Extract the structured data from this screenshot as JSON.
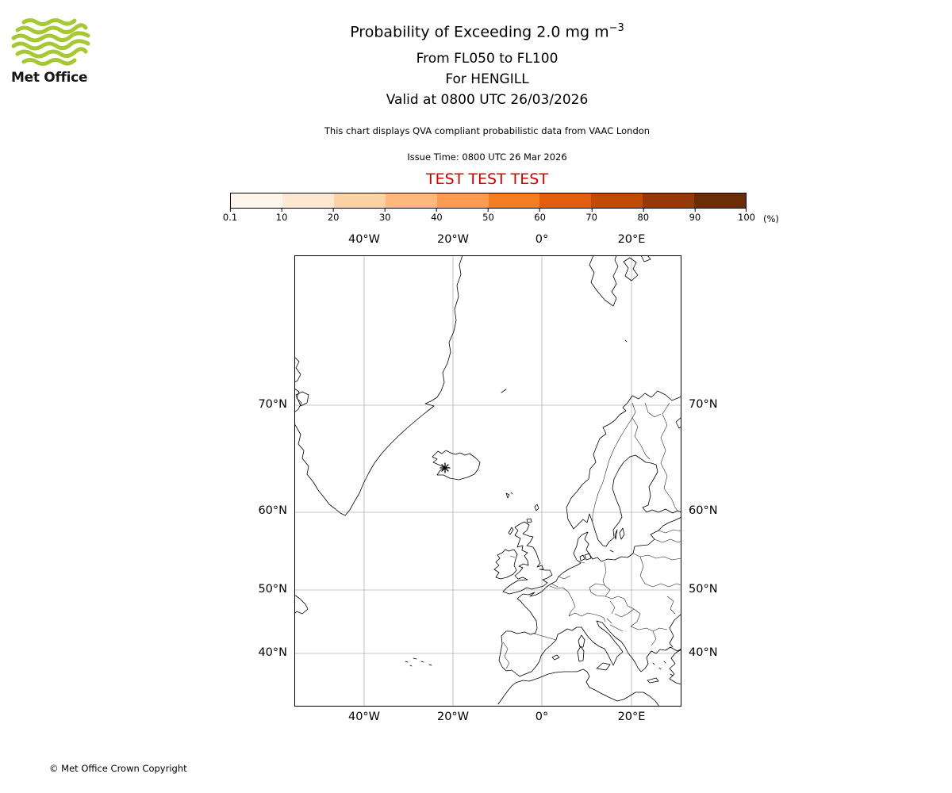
{
  "header": {
    "logo": {
      "brand": "Met Office",
      "wave_color": "#a6c832"
    },
    "title_main": "Probability of Exceeding 2.0 mg m",
    "title_superscript": "−3",
    "subtitle_flight_levels": "From FL050 to FL100",
    "subtitle_volcano": "For HENGILL",
    "subtitle_valid": "Valid at 0800 UTC 26/03/2026",
    "description": "This chart displays QVA compliant probabilistic data from VAAC London",
    "issue_time": "Issue Time: 0800 UTC 26 Mar 2026",
    "test_banner": "TEST TEST TEST",
    "test_banner_color": "#d40000"
  },
  "colorbar": {
    "tick_labels": [
      "0.1",
      "10",
      "20",
      "30",
      "40",
      "50",
      "60",
      "70",
      "80",
      "90",
      "100"
    ],
    "unit": "(%)",
    "segment_colors": [
      "#fff5eb",
      "#fee8d2",
      "#fdd2a6",
      "#fdb97d",
      "#fd9c51",
      "#f57d21",
      "#e25d0e",
      "#c14a05",
      "#96390a",
      "#6b2d05"
    ]
  },
  "map": {
    "top_ticks": [
      "40°W",
      "20°W",
      "0°",
      "20°E"
    ],
    "bottom_ticks": [
      "40°W",
      "20°W",
      "0°",
      "20°E"
    ],
    "left_ticks": [
      "70°N",
      "60°N",
      "50°N",
      "40°N"
    ],
    "right_ticks": [
      "70°N",
      "60°N",
      "50°N",
      "40°N"
    ],
    "marker": {
      "name": "HENGILL",
      "symbol": "volcano-asterisk"
    }
  },
  "footer": {
    "copyright": "© Met Office Crown Copyright"
  },
  "chart_data": {
    "type": "heatmap",
    "subtype": "geographic-probability-chart",
    "title": "Probability of Exceeding 2.0 mg m−3",
    "flight_levels": "From FL050 to FL100",
    "volcano": "HENGILL",
    "valid_time": "0800 UTC 26/03/2026",
    "issue_time": "0800 UTC 26 Mar 2026",
    "source": "VAAC London QVA probabilistic data",
    "colorbar_percent_ticks": [
      0.1,
      10,
      20,
      30,
      40,
      50,
      60,
      70,
      80,
      90,
      100
    ],
    "lon_gridlines_deg": [
      -40,
      -20,
      0,
      20
    ],
    "lat_gridlines_deg": [
      70,
      60,
      50,
      40
    ],
    "map_extent_approx": {
      "lon_min": -55.7,
      "lon_max": 31.3,
      "lat_min": 30.3,
      "lat_max": 78.8
    },
    "probability_contours": [],
    "note": "No exceedance probability areas are shaded on the map; volcano marker plotted on SW Iceland"
  }
}
